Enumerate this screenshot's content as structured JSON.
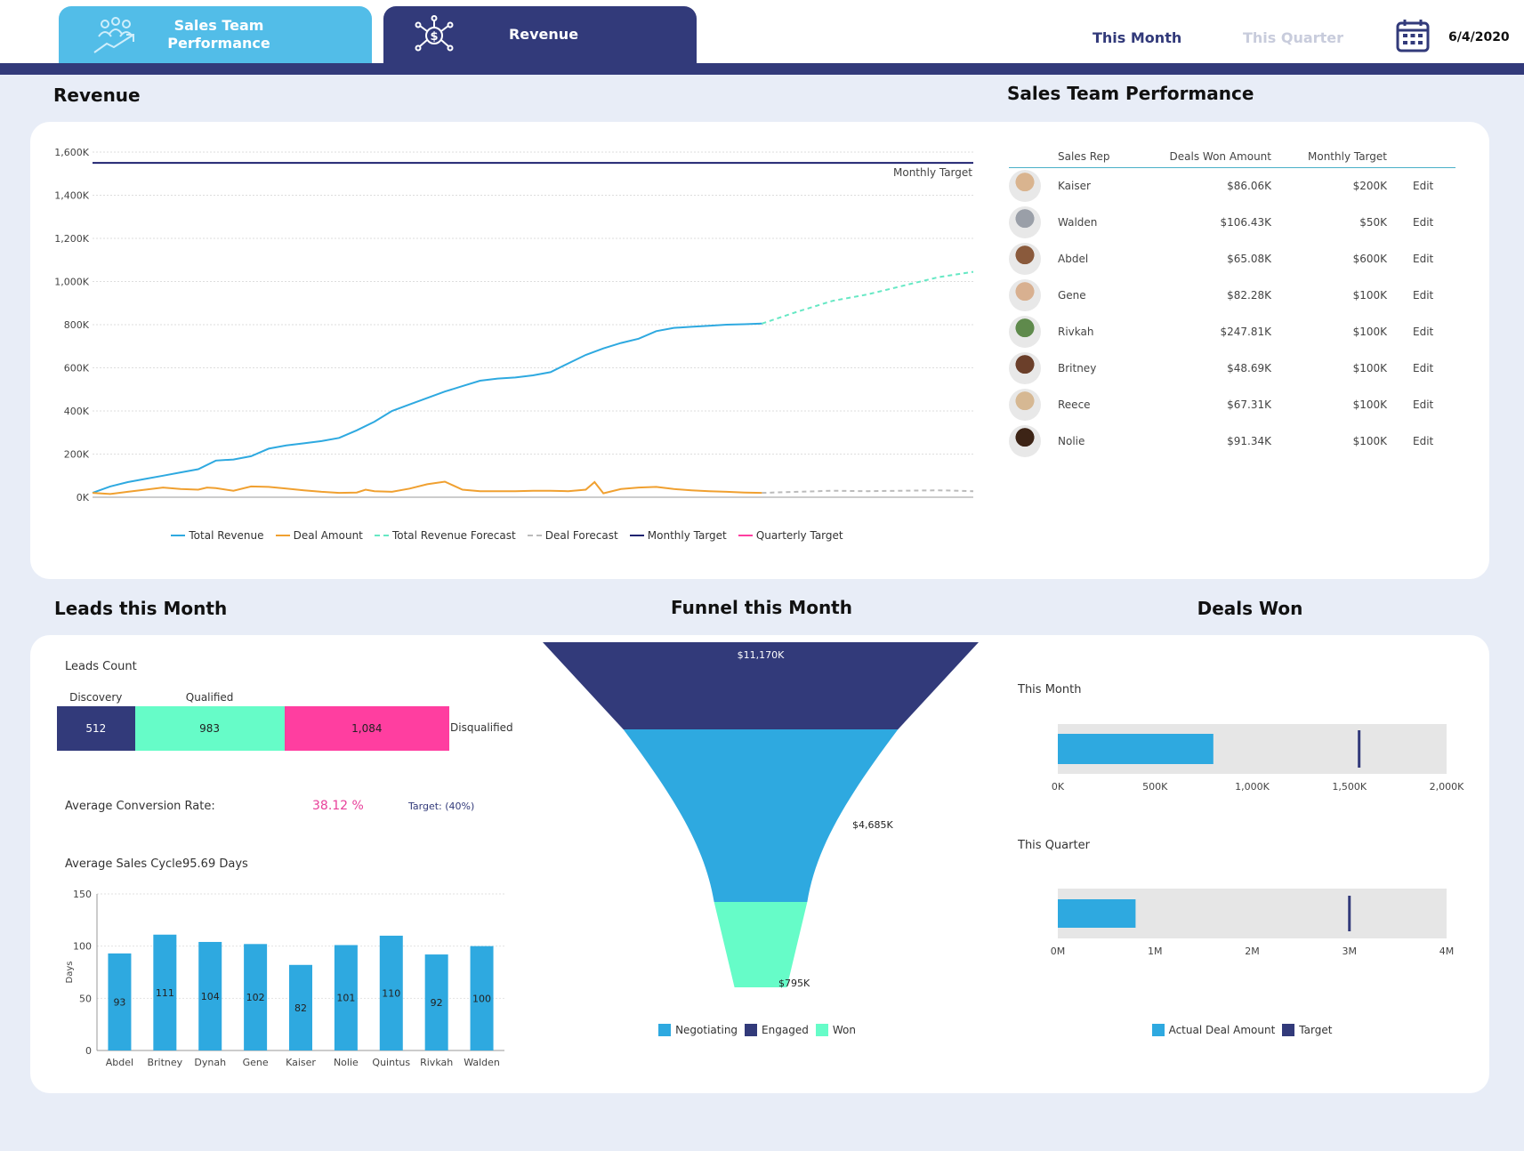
{
  "header": {
    "tabs": [
      {
        "label_line1": "Sales Team",
        "label_line2": "Performance",
        "icon": "team-growth-icon"
      },
      {
        "label": "Revenue",
        "icon": "revenue-network-icon"
      }
    ],
    "this_month": "This Month",
    "this_quarter": "This Quarter",
    "date": "6/4/2020",
    "calendar_icon": "calendar-icon"
  },
  "colors": {
    "navy": "#323a7a",
    "blue": "#2ea9e0",
    "mint": "#66fcc8",
    "pink": "#ff3ea0",
    "orange": "#f0a030",
    "background": "#e8edf7"
  },
  "revenue": {
    "title": "Revenue",
    "chart_data": {
      "type": "line",
      "ylim": [
        0,
        1600
      ],
      "yticks": [
        "0K",
        "200K",
        "400K",
        "600K",
        "800K",
        "1,000K",
        "1,200K",
        "1,400K",
        "1,600K"
      ],
      "annotation": "Monthly Target",
      "monthly_target": 1550,
      "series": [
        {
          "name": "Total Revenue",
          "color": "#2ea9e0",
          "x": [
            0,
            2,
            4,
            6,
            8,
            10,
            12,
            14,
            16,
            18,
            20,
            22,
            24,
            26,
            28,
            30,
            32,
            34,
            36,
            38,
            40,
            42,
            44,
            46,
            48,
            50,
            52,
            54,
            56,
            58,
            60,
            62,
            64,
            66,
            68,
            70,
            72,
            74,
            76
          ],
          "values": [
            20,
            50,
            70,
            85,
            100,
            115,
            130,
            170,
            175,
            190,
            225,
            240,
            250,
            260,
            275,
            310,
            350,
            400,
            430,
            460,
            490,
            515,
            540,
            550,
            555,
            565,
            580,
            620,
            660,
            690,
            715,
            735,
            770,
            785,
            790,
            795,
            800,
            802,
            805
          ]
        },
        {
          "name": "Deal Amount",
          "color": "#f0a030",
          "x": [
            0,
            2,
            4,
            6,
            8,
            10,
            12,
            13,
            14,
            16,
            18,
            20,
            22,
            24,
            26,
            28,
            30,
            31,
            32,
            34,
            36,
            38,
            40,
            42,
            44,
            46,
            48,
            50,
            52,
            54,
            56,
            57,
            58,
            60,
            62,
            64,
            66,
            68,
            70,
            72,
            74,
            76
          ],
          "values": [
            20,
            15,
            25,
            35,
            45,
            38,
            35,
            45,
            42,
            30,
            50,
            48,
            40,
            32,
            25,
            20,
            22,
            35,
            28,
            25,
            40,
            60,
            72,
            35,
            28,
            28,
            28,
            30,
            30,
            28,
            35,
            70,
            18,
            38,
            45,
            48,
            38,
            32,
            28,
            25,
            22,
            20
          ]
        },
        {
          "name": "Total Revenue Forecast",
          "color": "#66e8c4",
          "x": [
            76,
            80,
            84,
            88,
            92,
            96,
            100
          ],
          "values": [
            805,
            860,
            910,
            940,
            980,
            1020,
            1045
          ]
        },
        {
          "name": "Deal Forecast",
          "color": "#bbbbbb",
          "x": [
            76,
            80,
            84,
            88,
            92,
            96,
            100
          ],
          "values": [
            20,
            25,
            30,
            28,
            30,
            32,
            28
          ]
        },
        {
          "name": "Monthly Target",
          "color": "#1f2370"
        },
        {
          "name": "Quarterly Target",
          "color": "#ff3ea0"
        }
      ]
    }
  },
  "sales_team": {
    "title": "Sales Team Performance",
    "columns": [
      "Sales Rep",
      "Deals Won Amount",
      "Monthly Target"
    ],
    "rows": [
      {
        "name": "Kaiser",
        "amount": "$86.06K",
        "target": "$200K",
        "action": "Edit",
        "avatar_color": "#d9b48f"
      },
      {
        "name": "Walden",
        "amount": "$106.43K",
        "target": "$50K",
        "action": "Edit",
        "avatar_color": "#9a9fa8"
      },
      {
        "name": "Abdel",
        "amount": "$65.08K",
        "target": "$600K",
        "action": "Edit",
        "avatar_color": "#8a5a3c"
      },
      {
        "name": "Gene",
        "amount": "$82.28K",
        "target": "$100K",
        "action": "Edit",
        "avatar_color": "#d8b090"
      },
      {
        "name": "Rivkah",
        "amount": "$247.81K",
        "target": "$100K",
        "action": "Edit",
        "avatar_color": "#5f8a4c"
      },
      {
        "name": "Britney",
        "amount": "$48.69K",
        "target": "$100K",
        "action": "Edit",
        "avatar_color": "#6b3f2a"
      },
      {
        "name": "Reece",
        "amount": "$67.31K",
        "target": "$100K",
        "action": "Edit",
        "avatar_color": "#d6b893"
      },
      {
        "name": "Nolie",
        "amount": "$91.34K",
        "target": "$100K",
        "action": "Edit",
        "avatar_color": "#3d2416"
      }
    ]
  },
  "leads": {
    "title": "Leads this Month",
    "count_label": "Leads Count",
    "segments": [
      {
        "label": "Discovery",
        "value": 512,
        "display": "512",
        "color": "#323a7a",
        "text_color": "#fff"
      },
      {
        "label": "Qualified",
        "value": 983,
        "display": "983",
        "color": "#66fcc8",
        "text_color": "#222"
      },
      {
        "label": "Disqualified",
        "value": 1084,
        "display": "1,084",
        "color": "#ff3ea0",
        "text_color": "#222"
      }
    ],
    "conversion_label": "Average Conversion Rate:",
    "conversion_value": "38.12 %",
    "conversion_target": "Target: (40%)",
    "cycle_label": "Average Sales Cycle:",
    "cycle_value": "95.69 Days",
    "chart_data": {
      "type": "bar",
      "ylabel": "Days",
      "ylim": [
        0,
        150
      ],
      "yticks": [
        0,
        50,
        100,
        150
      ],
      "categories": [
        "Abdel",
        "Britney",
        "Dynah",
        "Gene",
        "Kaiser",
        "Nolie",
        "Quintus",
        "Rivkah",
        "Walden"
      ],
      "values": [
        93,
        111,
        104,
        102,
        82,
        101,
        110,
        92,
        100
      ],
      "color": "#2ea9e0"
    }
  },
  "funnel": {
    "title": "Funnel this Month",
    "chart_data": {
      "type": "funnel",
      "stages": [
        {
          "name": "Engaged",
          "label": "$11,170K",
          "value": 11170,
          "color": "#323a7a"
        },
        {
          "name": "Negotiating",
          "label": "$4,685K",
          "value": 4685,
          "color": "#2ea9e0"
        },
        {
          "name": "Won",
          "label": "$795K",
          "value": 795,
          "color": "#66fcc8"
        }
      ],
      "legend": [
        {
          "name": "Negotiating",
          "color": "#2ea9e0"
        },
        {
          "name": "Engaged",
          "color": "#323a7a"
        },
        {
          "name": "Won",
          "color": "#66fcc8"
        }
      ]
    }
  },
  "deals_won": {
    "title": "Deals Won",
    "chart_data": [
      {
        "type": "bullet",
        "label": "This Month",
        "actual": 800,
        "target": 1550,
        "max": 2000,
        "ticks": [
          "0K",
          "500K",
          "1,000K",
          "1,500K",
          "2,000K"
        ]
      },
      {
        "type": "bullet",
        "label": "This Quarter",
        "actual": 0.8,
        "target": 3.0,
        "max": 4,
        "ticks": [
          "0M",
          "1M",
          "2M",
          "3M",
          "4M"
        ]
      }
    ],
    "legend": [
      {
        "name": "Actual Deal Amount",
        "color": "#2ea9e0"
      },
      {
        "name": "Target",
        "color": "#323a7a"
      }
    ]
  }
}
